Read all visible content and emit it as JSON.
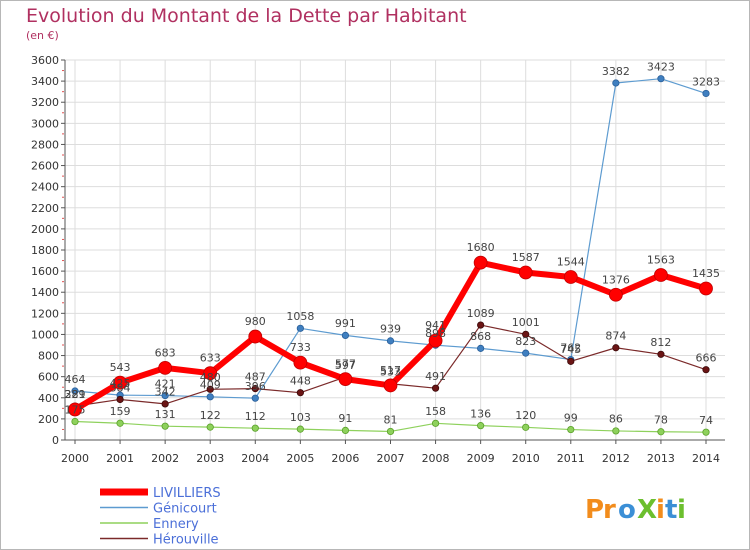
{
  "chart_data": {
    "type": "line",
    "title": "Evolution du Montant de la Dette par Habitant",
    "unit_label": "(en €)",
    "xlabel": "",
    "ylabel": "",
    "ylim": [
      0,
      3600
    ],
    "y_ticks": [
      0,
      200,
      400,
      600,
      800,
      1000,
      1200,
      1400,
      1600,
      1800,
      2000,
      2200,
      2400,
      2600,
      2800,
      3000,
      3200,
      3400,
      3600
    ],
    "categories": [
      "2000",
      "2001",
      "2002",
      "2003",
      "2004",
      "2005",
      "2006",
      "2007",
      "2008",
      "2009",
      "2010",
      "2011",
      "2012",
      "2013",
      "2014"
    ],
    "grid": true,
    "legend_position": "bottom-left",
    "series": [
      {
        "name": "Génicourt",
        "color": "#5d9bd0",
        "values": [
          464,
          425,
          421,
          409,
          396,
          1058,
          991,
          939,
          898,
          868,
          823,
          762,
          3382,
          3423,
          3283
        ]
      },
      {
        "name": "Ennery",
        "color": "#8ed15c",
        "values": [
          175,
          159,
          131,
          122,
          112,
          103,
          91,
          81,
          158,
          136,
          120,
          99,
          86,
          78,
          74
        ]
      },
      {
        "name": "Hérouville",
        "color": "#7b2a2a",
        "values": [
          321,
          384,
          342,
          480,
          487,
          448,
          597,
          533,
          491,
          1089,
          1001,
          745,
          874,
          812,
          666
        ]
      },
      {
        "name": "LIVILLIERS",
        "color": "#ff0000",
        "values": [
          289,
          543,
          683,
          633,
          980,
          733,
          577,
          517,
          941,
          1680,
          1587,
          1544,
          1376,
          1563,
          1435
        ]
      }
    ]
  },
  "legend": {
    "items": [
      {
        "name": "LIVILLIERS",
        "color": "#ff0000"
      },
      {
        "name": "Génicourt",
        "color": "#5d9bd0"
      },
      {
        "name": "Ennery",
        "color": "#8ed15c"
      },
      {
        "name": "Hérouville",
        "color": "#7b2a2a"
      }
    ]
  },
  "logo": {
    "text": "ProXiti",
    "letters": [
      "P",
      "r",
      "o",
      "X",
      "i",
      "t",
      "i"
    ]
  }
}
